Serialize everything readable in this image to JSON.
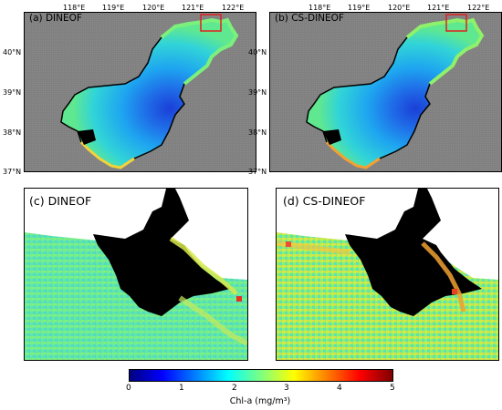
{
  "panels": {
    "a": {
      "label": "(a) DINEOF"
    },
    "b": {
      "label": "(b) CS-DINEOF"
    },
    "c": {
      "label": "(c) DINEOF"
    },
    "d": {
      "label": "(d) CS-DINEOF"
    }
  },
  "lon_ticks": [
    "118°E",
    "119°E",
    "120°E",
    "121°E",
    "122°E"
  ],
  "lat_ticks": [
    "40°N",
    "39°N",
    "38°N",
    "37°N"
  ],
  "colorbar": {
    "label": "Chl-a (mg/m³)",
    "ticks": [
      "0",
      "1",
      "2",
      "3",
      "4",
      "5"
    ],
    "min": 0,
    "max": 5,
    "colors": [
      "#00007f",
      "#0000ff",
      "#007fff",
      "#00ffff",
      "#7fff7f",
      "#ffff00",
      "#ff7f00",
      "#ff0000",
      "#7f0000"
    ]
  },
  "style": {
    "background_land": "#7f7f7f",
    "mask_color": "#000000",
    "highlight_box": "#e02020"
  }
}
